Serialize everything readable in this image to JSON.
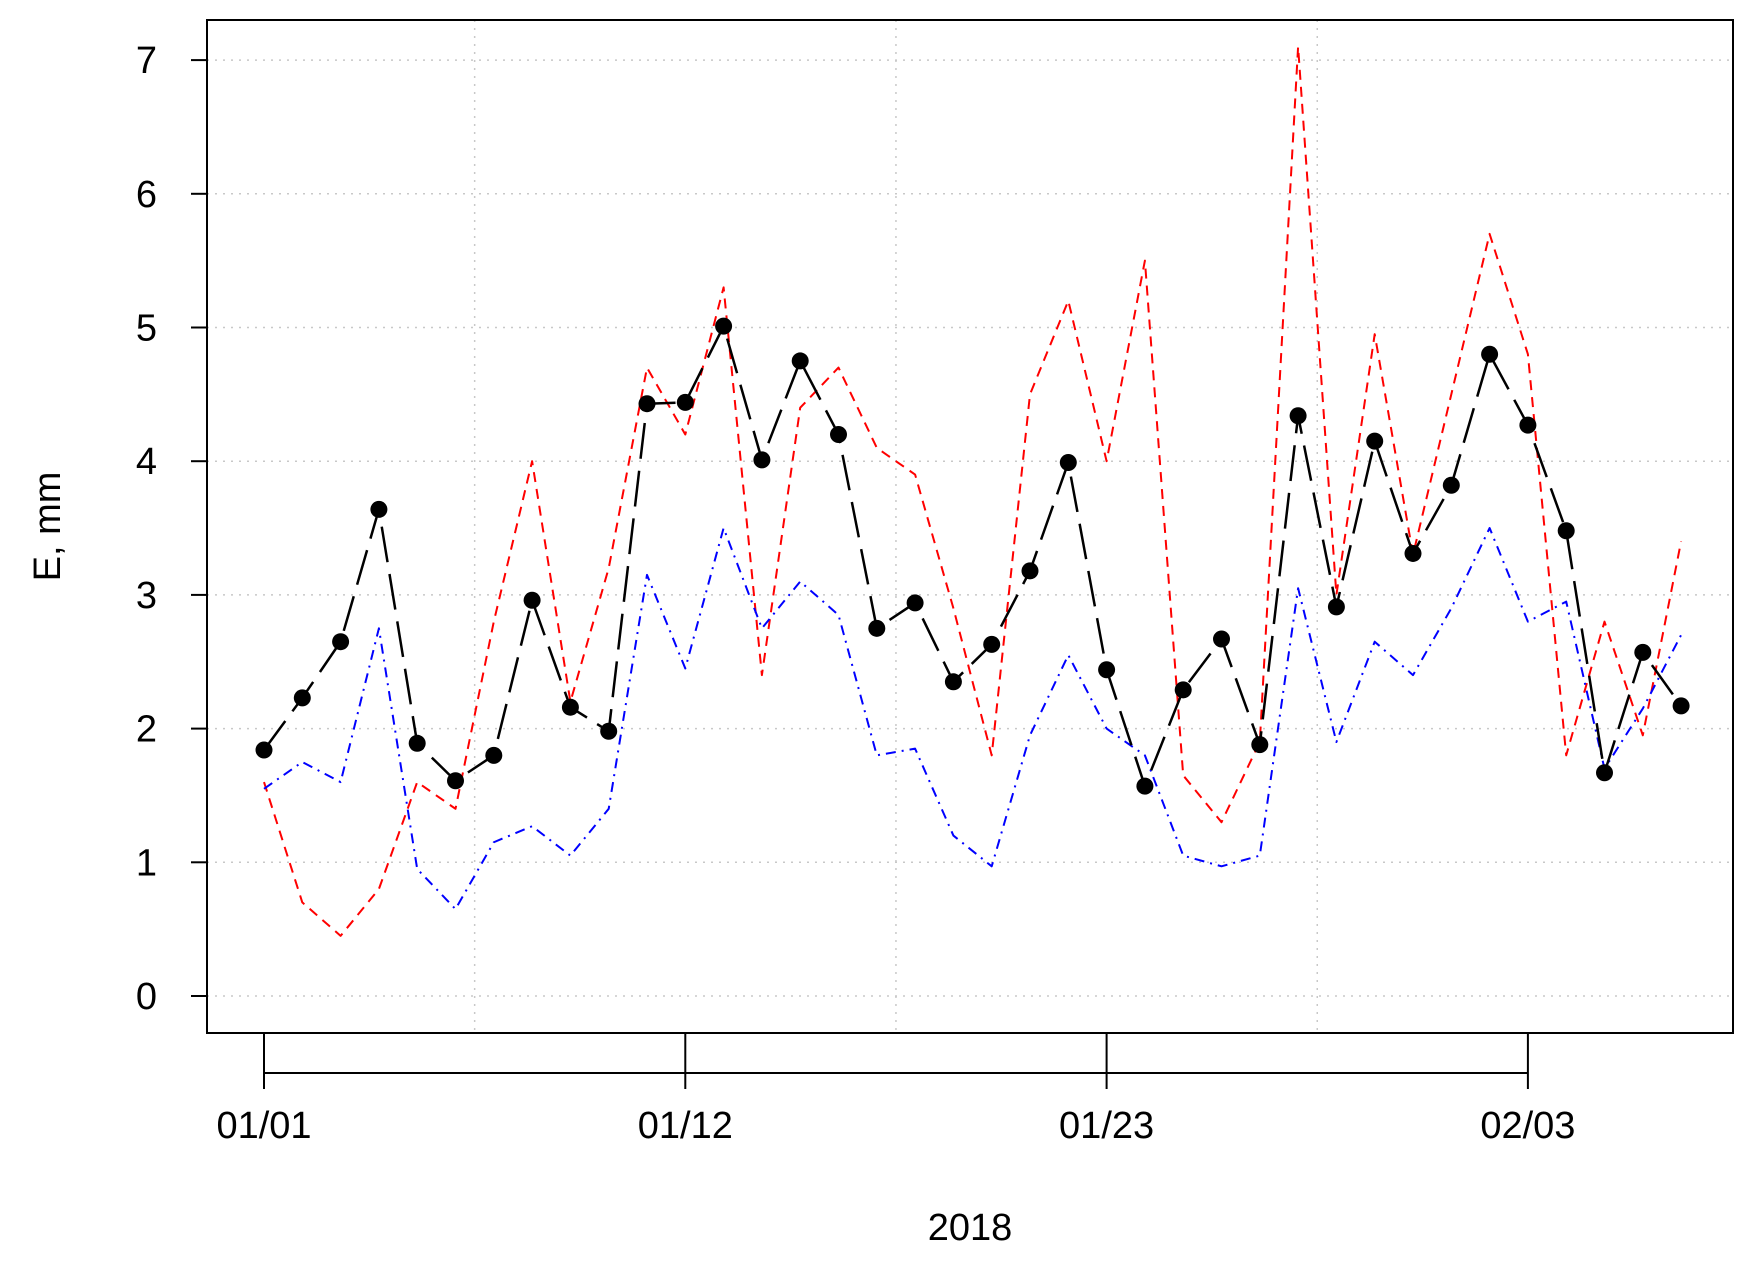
{
  "chart_data": {
    "type": "line",
    "xlabel": "2018",
    "ylabel": "E, mm",
    "ylim": [
      0,
      7
    ],
    "yticks": [
      0,
      1,
      2,
      3,
      4,
      5,
      6,
      7
    ],
    "x_tick_labels": [
      "01/01",
      "01/12",
      "01/23",
      "02/03"
    ],
    "x_tick_dates": [
      "2018-01-01",
      "2018-01-12",
      "2018-01-23",
      "2018-02-03"
    ],
    "x": [
      "2018-01-01",
      "2018-01-02",
      "2018-01-03",
      "2018-01-04",
      "2018-01-05",
      "2018-01-06",
      "2018-01-07",
      "2018-01-08",
      "2018-01-09",
      "2018-01-10",
      "2018-01-11",
      "2018-01-12",
      "2018-01-13",
      "2018-01-14",
      "2018-01-15",
      "2018-01-16",
      "2018-01-17",
      "2018-01-18",
      "2018-01-19",
      "2018-01-20",
      "2018-01-21",
      "2018-01-22",
      "2018-01-23",
      "2018-01-24",
      "2018-01-25",
      "2018-01-26",
      "2018-01-27",
      "2018-01-28",
      "2018-01-29",
      "2018-01-30",
      "2018-01-31",
      "2018-02-01",
      "2018-02-02",
      "2018-02-03",
      "2018-02-04",
      "2018-02-05",
      "2018-02-06",
      "2018-02-07"
    ],
    "grid": true,
    "legend": "none",
    "series": [
      {
        "color": "#ff0000",
        "style": "dashed",
        "values": [
          1.6,
          0.7,
          0.45,
          0.8,
          1.6,
          1.4,
          2.8,
          4.0,
          2.2,
          3.2,
          4.7,
          4.2,
          5.3,
          2.4,
          4.4,
          4.7,
          4.1,
          3.9,
          2.9,
          1.8,
          4.5,
          5.2,
          4.0,
          5.5,
          1.65,
          1.3,
          1.9,
          7.1,
          3.0,
          4.95,
          3.3,
          4.5,
          5.7,
          4.8,
          1.8,
          2.8,
          1.95,
          3.4
        ]
      },
      {
        "color": "#0000ff",
        "style": "dashdot",
        "values": [
          1.55,
          1.75,
          1.6,
          2.75,
          0.95,
          0.65,
          1.15,
          1.27,
          1.05,
          1.4,
          3.15,
          2.45,
          3.5,
          2.75,
          3.1,
          2.85,
          1.8,
          1.85,
          1.2,
          0.97,
          1.95,
          2.55,
          2.0,
          1.8,
          1.05,
          0.97,
          1.05,
          3.05,
          1.9,
          2.65,
          2.4,
          2.9,
          3.5,
          2.8,
          2.95,
          1.7,
          2.15,
          2.7
        ]
      },
      {
        "color": "#000000",
        "style": "longdash",
        "markers": true,
        "values": [
          1.84,
          2.23,
          2.65,
          3.64,
          1.89,
          1.61,
          1.8,
          2.96,
          2.16,
          1.98,
          4.43,
          4.44,
          5.01,
          4.01,
          4.75,
          4.2,
          2.75,
          2.94,
          2.35,
          2.63,
          3.18,
          3.99,
          2.44,
          1.57,
          2.29,
          2.67,
          1.88,
          4.34,
          2.91,
          4.15,
          3.31,
          3.82,
          4.8,
          4.27,
          3.48,
          1.67,
          2.57,
          2.17
        ]
      }
    ]
  }
}
